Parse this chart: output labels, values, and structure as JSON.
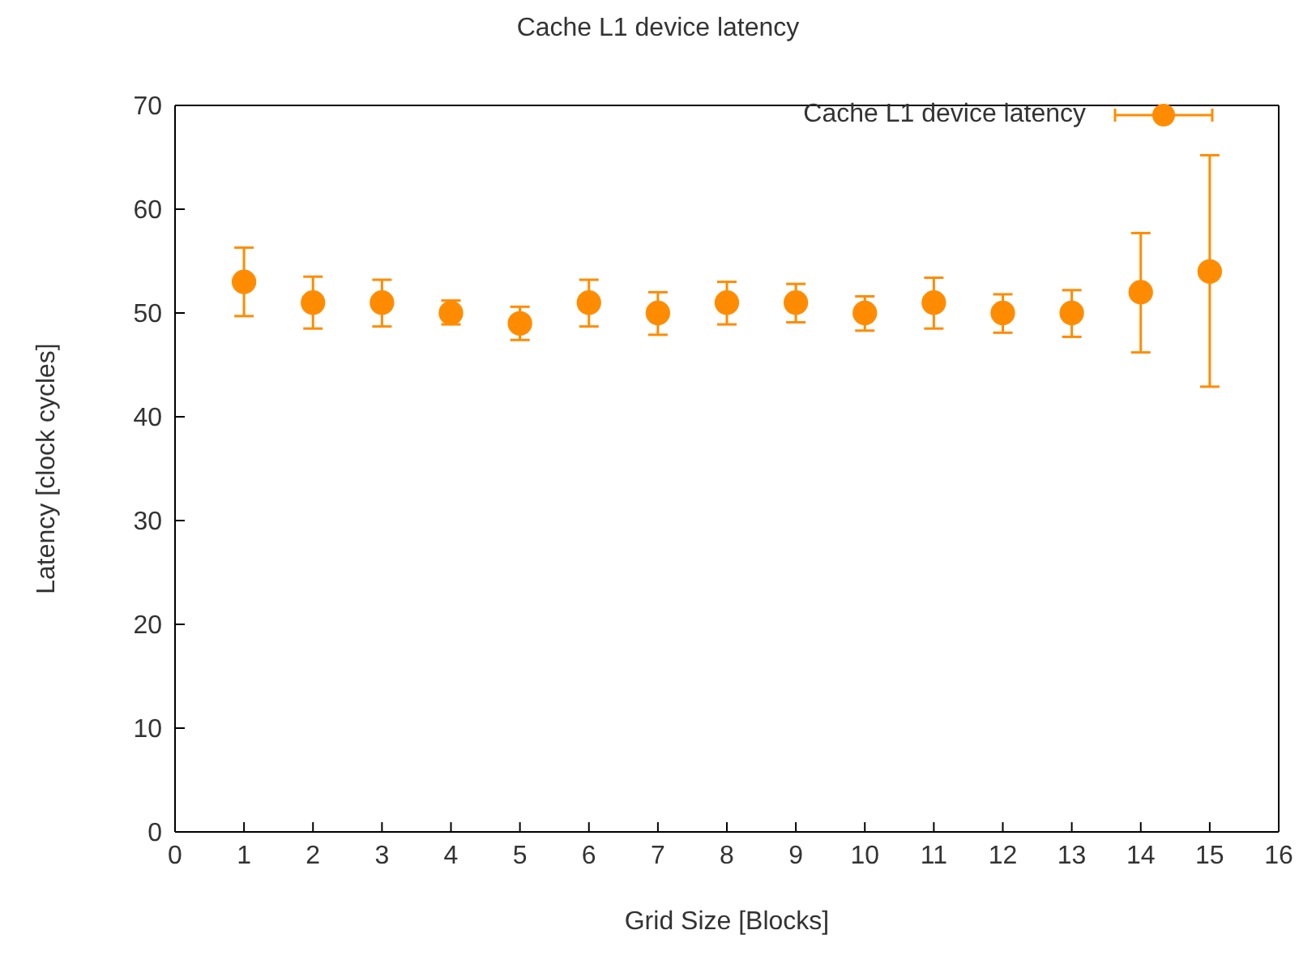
{
  "chart_data": {
    "type": "scatter",
    "title": "Cache L1 device latency",
    "xlabel": "Grid Size [Blocks]",
    "ylabel": "Latency [clock cycles]",
    "x": [
      1,
      2,
      3,
      4,
      5,
      6,
      7,
      8,
      9,
      10,
      11,
      12,
      13,
      14,
      15
    ],
    "series": [
      {
        "name": "Cache L1 device latency",
        "color": "#ff8c00",
        "values": [
          53,
          51,
          51,
          50,
          49,
          51,
          50,
          51,
          51,
          50,
          51,
          50,
          50,
          52,
          54
        ],
        "errors": [
          [
            49.7,
            56.3
          ],
          [
            48.5,
            53.5
          ],
          [
            48.7,
            53.2
          ],
          [
            48.9,
            51.2
          ],
          [
            47.4,
            50.6
          ],
          [
            48.7,
            53.2
          ],
          [
            47.9,
            52.0
          ],
          [
            48.9,
            53.0
          ],
          [
            49.1,
            52.8
          ],
          [
            48.3,
            51.6
          ],
          [
            48.5,
            53.4
          ],
          [
            48.1,
            51.8
          ],
          [
            47.7,
            52.2
          ],
          [
            46.2,
            57.7
          ],
          [
            42.9,
            65.2
          ]
        ]
      }
    ],
    "xlim": [
      0,
      16
    ],
    "xticks": [
      0,
      1,
      2,
      3,
      4,
      5,
      6,
      7,
      8,
      9,
      10,
      11,
      12,
      13,
      14,
      15,
      16
    ],
    "ylim": [
      0,
      70
    ],
    "yticks": [
      0,
      10,
      20,
      30,
      40,
      50,
      60,
      70
    ],
    "legend": "top right",
    "marker": "circle"
  }
}
